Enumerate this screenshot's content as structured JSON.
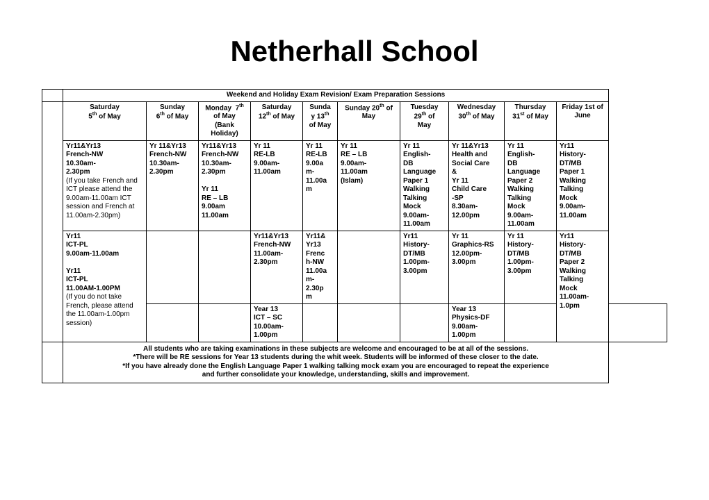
{
  "title": "Netherhall School",
  "banner": "Weekend and Holiday Exam Revision/ Exam Preparation Sessions",
  "columns": [
    {
      "label_html": "Saturday<br>5<sup>th</sup> of May"
    },
    {
      "label_html": "Sunday<br>6<sup>th</sup> of May"
    },
    {
      "label_html": "Monday&nbsp;&nbsp;7<sup>th</sup><br>of May<br>(Bank<br>Holiday)"
    },
    {
      "label_html": "Saturday<br>12<sup>th</sup> of May"
    },
    {
      "label_html": "Sunda<br>y 13<sup>th</sup><br>of May"
    },
    {
      "label_html": "Sunday 20<sup>th</sup> of<br>May"
    },
    {
      "label_html": "Tuesday<br>29<sup>th</sup> of<br>May"
    },
    {
      "label_html": "Wednesday<br>30<sup>th</sup> of May"
    },
    {
      "label_html": "Thursday<br>31<sup>st</sup> of May"
    },
    {
      "label_html": "Friday 1st of<br>June"
    }
  ],
  "row1": [
    "<b>Yr11&Yr13<br>French-NW<br>10.30am-<br>2.30pm</b><br>(If you take French and ICT please attend the 9.00am-11.00am ICT session and French at 11.00am-2.30pm)",
    "<b>Yr 11&Yr13<br>French-NW<br>10.30am-<br>2.30pm</b>",
    "<b>Yr11&Yr13<br>French-NW<br>10.30am-<br>2.30pm<br><br>Yr 11<br>RE – LB<br>9.00am<br>11.00am</b>",
    "<b>Yr 11<br>RE-LB<br>9.00am-<br>11.00am</b>",
    "<b>Yr 11<br>RE-LB<br>9.00a<br>m-<br>11.00a<br>m</b>",
    "<b>Yr 11<br>RE – LB<br>9.00am-<br>11.00am<br>(Islam)</b>",
    "<b>Yr 11<br>English-<br>DB<br>Language<br>Paper 1<br>Walking<br>Talking<br>Mock<br>9.00am-<br>11.00am</b>",
    "<b>Yr 11&Yr13<br>Health and<br>Social Care<br>&<br>Yr 11<br>Child Care<br>-SP<br>8.30am-<br>12.00pm</b>",
    "<b>Yr 11<br>English-<br>DB<br>Language<br>Paper 2<br>Walking<br>Talking<br>Mock<br>9.00am-<br>11.00am</b>",
    "<b>Yr11<br>History-<br>DT/MB<br>Paper 1<br>Walking<br>Talking<br>Mock<br>9.00am-<br>11.00am</b>"
  ],
  "row2": [
    "<b>Yr11<br>ICT-PL<br>9.00am-11.00am<br><br>Yr11<br>ICT-PL<br>11.00AM-1.00PM</b><br>(If you do not take French, please attend the 11.00am-1.00pm session)",
    "",
    "",
    "<b>Yr11&Yr13<br>French-NW<br>11.00am-<br>2.30pm</b>",
    "<b>Yr11&<br>Yr13<br>Frenc<br>h-NW<br>11.00a<br>m-<br>2.30p<br>m</b>",
    "",
    "<b>Yr11<br>History-<br>DT/MB<br>1.00pm-<br>3.00pm</b>",
    "<b>Yr 11<br>Graphics-RS<br>12.00pm-<br>3.00pm</b>",
    "<b>Yr 11<br>History-<br>DT/MB<br>1.00pm-<br>3.00pm</b>",
    "<b>Yr11<br>History-<br>DT/MB<br>Paper 2<br>Walking<br>Talking<br>Mock<br>11.00am-<br>1.0pm</b>"
  ],
  "row3": [
    "",
    "",
    "<b>Year 13<br>ICT – SC<br>10.00am-<br>1.00pm</b>",
    "",
    "",
    "",
    "<b>Year 13<br>Physics-DF<br>9.00am-<br>1.00pm</b>",
    "",
    ""
  ],
  "footer": "All students who are taking examinations in these subjects are welcome and encouraged to be at all of the sessions.<br>*There will be RE sessions for Year 13 students during the whit week. Students will be informed of these closer to the date.<br>*If you have already done the English Language Paper 1 walking talking mock exam you are encouraged to repeat the experience<br>and further consolidate your knowledge, understanding, skills and improvement."
}
